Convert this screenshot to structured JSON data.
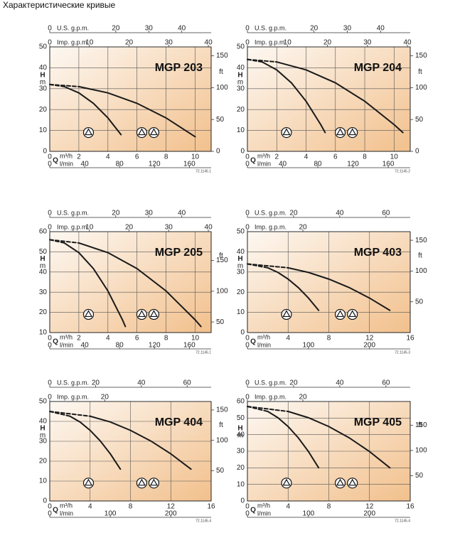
{
  "title": "Характеристические кривые",
  "chart_data": [
    {
      "type": "line",
      "title": "MGP 203",
      "code": "72.1145.1",
      "xlabel": "Q",
      "xunit": "m³/h",
      "ylabel": "H",
      "yunit": "m",
      "y2label": "ft",
      "xlim": [
        0,
        11.1
      ],
      "xticks": [
        0,
        2,
        4,
        6,
        8,
        10
      ],
      "x_axes": [
        {
          "label": "U.S. g.p.m.",
          "position": "top",
          "lim": [
            0,
            48.9
          ],
          "ticks": [
            0,
            20,
            30,
            40
          ]
        },
        {
          "label": "Imp. g.p.m.",
          "position": "top",
          "lim": [
            0,
            40.7
          ],
          "ticks": [
            0,
            10,
            20,
            30,
            40
          ]
        },
        {
          "label": "l/min",
          "position": "bottom",
          "lim": [
            0,
            185
          ],
          "ticks": [
            0,
            40,
            80,
            120,
            160
          ]
        }
      ],
      "ylim": [
        0,
        50
      ],
      "yticks": [
        0,
        10,
        20,
        30,
        40,
        50
      ],
      "y2lim": [
        0,
        164
      ],
      "y2ticks": [
        0,
        50,
        100,
        150
      ],
      "grid": true,
      "color": "#1a1a1a",
      "series": [
        {
          "style": "dashed",
          "x": [
            0,
            1
          ],
          "values": [
            32,
            31
          ]
        },
        {
          "style": "solid",
          "x": [
            1,
            2,
            3,
            4,
            4.9
          ],
          "values": [
            31,
            28,
            23,
            16,
            8
          ]
        },
        {
          "style": "dashed",
          "x": [
            0,
            2
          ],
          "values": [
            32,
            31
          ]
        },
        {
          "style": "solid",
          "x": [
            2,
            4,
            6,
            8,
            10
          ],
          "values": [
            31,
            28,
            23,
            16,
            7
          ]
        }
      ]
    },
    {
      "type": "line",
      "title": "MGP 204",
      "code": "72.1145.2",
      "xlabel": "Q",
      "xunit": "m³/h",
      "ylabel": "H",
      "yunit": "m",
      "y2label": "ft",
      "xlim": [
        0,
        11.1
      ],
      "xticks": [
        0,
        2,
        4,
        6,
        8,
        10
      ],
      "x_axes": [
        {
          "label": "U.S. g.p.m.",
          "position": "top",
          "lim": [
            0,
            48.9
          ],
          "ticks": [
            0,
            20,
            30,
            40
          ]
        },
        {
          "label": "Imp. g.p.m.",
          "position": "top",
          "lim": [
            0,
            40.7
          ],
          "ticks": [
            0,
            10,
            20,
            30,
            40
          ]
        },
        {
          "label": "l/min",
          "position": "bottom",
          "lim": [
            0,
            185
          ],
          "ticks": [
            0,
            40,
            80,
            120,
            160
          ]
        }
      ],
      "ylim": [
        0,
        50
      ],
      "yticks": [
        0,
        10,
        20,
        30,
        40,
        50
      ],
      "y2lim": [
        0,
        164
      ],
      "y2ticks": [
        0,
        50,
        100,
        150
      ],
      "grid": true,
      "color": "#1a1a1a",
      "series": [
        {
          "style": "dashed",
          "x": [
            0,
            1
          ],
          "values": [
            44,
            42.8
          ]
        },
        {
          "style": "solid",
          "x": [
            1,
            2,
            3,
            4,
            5,
            5.3
          ],
          "values": [
            42.8,
            39,
            32.8,
            24,
            12.8,
            9
          ]
        },
        {
          "style": "dashed",
          "x": [
            0,
            2
          ],
          "values": [
            44,
            42.8
          ]
        },
        {
          "style": "solid",
          "x": [
            2,
            4,
            6,
            8,
            10,
            10.6
          ],
          "values": [
            42.8,
            39,
            32.8,
            24,
            12.8,
            9
          ]
        }
      ]
    },
    {
      "type": "line",
      "title": "MGP 205",
      "code": "72.1145.1",
      "xlabel": "Q",
      "xunit": "m³/h",
      "ylabel": "H",
      "yunit": "m",
      "y2label": "ft",
      "xlim": [
        0,
        11.1
      ],
      "xticks": [
        0,
        2,
        4,
        6,
        8,
        10
      ],
      "x_axes": [
        {
          "label": "U.S. g.p.m.",
          "position": "top",
          "lim": [
            0,
            48.9
          ],
          "ticks": [
            0,
            20,
            30,
            40
          ]
        },
        {
          "label": "Imp. g.p.m.",
          "position": "top",
          "lim": [
            0,
            40.7
          ],
          "ticks": [
            0,
            10,
            20,
            30,
            40
          ]
        },
        {
          "label": "l/min",
          "position": "bottom",
          "lim": [
            0,
            185
          ],
          "ticks": [
            0,
            40,
            80,
            120,
            160
          ]
        }
      ],
      "ylim": [
        10,
        60
      ],
      "yticks": [
        10,
        20,
        30,
        40,
        50,
        60
      ],
      "y2lim": [
        32.8,
        196.9
      ],
      "y2ticks": [
        50,
        100,
        150
      ],
      "grid": true,
      "color": "#1a1a1a",
      "series": [
        {
          "style": "dashed",
          "x": [
            0,
            1
          ],
          "values": [
            56,
            54.4
          ]
        },
        {
          "style": "solid",
          "x": [
            1,
            2,
            3,
            4,
            5,
            5.2
          ],
          "values": [
            54.4,
            49.6,
            41.7,
            30.6,
            16.3,
            13
          ]
        },
        {
          "style": "dashed",
          "x": [
            0,
            2
          ],
          "values": [
            56,
            54.4
          ]
        },
        {
          "style": "solid",
          "x": [
            2,
            4,
            6,
            8,
            10,
            10.4
          ],
          "values": [
            54.4,
            49.6,
            41.7,
            30.6,
            16.3,
            13
          ]
        }
      ]
    },
    {
      "type": "line",
      "title": "MGP 403",
      "code": "72.1145.3",
      "xlabel": "Q",
      "xunit": "m³/h",
      "ylabel": "H",
      "yunit": "m",
      "y2label": "ft",
      "xlim": [
        0,
        16
      ],
      "xticks": [
        0,
        4,
        8,
        12,
        16
      ],
      "x_axes": [
        {
          "label": "U.S. g.p.m.",
          "position": "top",
          "lim": [
            0,
            70.5
          ],
          "ticks": [
            0,
            20,
            40,
            60
          ]
        },
        {
          "label": "Imp. g.p.m.",
          "position": "top",
          "lim": [
            0,
            58.7
          ],
          "ticks": [
            0,
            20
          ]
        },
        {
          "label": "l/min",
          "position": "bottom",
          "lim": [
            0,
            266.7
          ],
          "ticks": [
            0,
            100,
            200
          ]
        }
      ],
      "ylim": [
        0,
        50
      ],
      "yticks": [
        0,
        10,
        20,
        30,
        40,
        50
      ],
      "y2lim": [
        0,
        164
      ],
      "y2ticks": [
        50,
        100,
        150
      ],
      "grid": true,
      "color": "#1a1a1a",
      "series": [
        {
          "style": "dashed",
          "x": [
            0,
            2
          ],
          "values": [
            34,
            32.1
          ]
        },
        {
          "style": "solid",
          "x": [
            2,
            3,
            4,
            5,
            6,
            7
          ],
          "values": [
            32.1,
            29.8,
            26.5,
            22.3,
            17.1,
            11
          ]
        },
        {
          "style": "dashed",
          "x": [
            0,
            4
          ],
          "values": [
            34,
            32.1
          ]
        },
        {
          "style": "solid",
          "x": [
            4,
            6,
            8,
            10,
            12,
            14
          ],
          "values": [
            32.1,
            29.8,
            26.5,
            22.3,
            17.1,
            11
          ]
        }
      ]
    },
    {
      "type": "line",
      "title": "MGP 404",
      "code": "72.1145.4",
      "xlabel": "Q",
      "xunit": "m³/h",
      "ylabel": "H",
      "yunit": "m",
      "y2label": "ft",
      "xlim": [
        0,
        16
      ],
      "xticks": [
        0,
        4,
        8,
        12,
        16
      ],
      "x_axes": [
        {
          "label": "U.S. g.p.m.",
          "position": "top",
          "lim": [
            0,
            70.5
          ],
          "ticks": [
            0,
            20,
            40,
            60
          ]
        },
        {
          "label": "Imp. g.p.m.",
          "position": "top",
          "lim": [
            0,
            58.7
          ],
          "ticks": [
            0,
            20
          ]
        },
        {
          "label": "l/min",
          "position": "bottom",
          "lim": [
            0,
            266.7
          ],
          "ticks": [
            0,
            100,
            200
          ]
        }
      ],
      "ylim": [
        0,
        50
      ],
      "yticks": [
        0,
        10,
        20,
        30,
        40,
        50
      ],
      "y2lim": [
        0,
        164
      ],
      "y2ticks": [
        50,
        100,
        150
      ],
      "grid": true,
      "color": "#1a1a1a",
      "series": [
        {
          "style": "dashed",
          "x": [
            0,
            2
          ],
          "values": [
            45,
            42.6
          ]
        },
        {
          "style": "solid",
          "x": [
            2,
            3,
            4,
            5,
            6,
            7
          ],
          "values": [
            42.6,
            39.7,
            35.5,
            30.2,
            23.7,
            16
          ]
        },
        {
          "style": "dashed",
          "x": [
            0,
            4
          ],
          "values": [
            45,
            42.6
          ]
        },
        {
          "style": "solid",
          "x": [
            4,
            6,
            8,
            10,
            12,
            14
          ],
          "values": [
            42.6,
            39.7,
            35.5,
            30.2,
            23.7,
            16
          ]
        }
      ]
    },
    {
      "type": "line",
      "title": "MGP 405",
      "code": "72.1145.4",
      "xlabel": "Q",
      "xunit": "m³/h",
      "ylabel": "H",
      "yunit": "m",
      "y2label": "ft",
      "xlim": [
        0,
        16
      ],
      "xticks": [
        0,
        4,
        8,
        12,
        16
      ],
      "x_axes": [
        {
          "label": "U.S. g.p.m.",
          "position": "top",
          "lim": [
            0,
            70.5
          ],
          "ticks": [
            0,
            20,
            40,
            60
          ]
        },
        {
          "label": "Imp. g.p.m.",
          "position": "top",
          "lim": [
            0,
            58.7
          ],
          "ticks": [
            0,
            20
          ]
        },
        {
          "label": "l/min",
          "position": "bottom",
          "lim": [
            0,
            266.7
          ],
          "ticks": [
            0,
            100,
            200
          ]
        }
      ],
      "ylim": [
        0,
        60
      ],
      "yticks": [
        0,
        10,
        20,
        30,
        40,
        50,
        60
      ],
      "y2lim": [
        0,
        196.9
      ],
      "y2ticks": [
        50,
        100,
        150
      ],
      "grid": true,
      "color": "#1a1a1a",
      "series": [
        {
          "style": "dashed",
          "x": [
            0,
            2
          ],
          "values": [
            57,
            54
          ]
        },
        {
          "style": "solid",
          "x": [
            2,
            3,
            4,
            5,
            6,
            7
          ],
          "values": [
            54,
            50.2,
            44.9,
            38.1,
            29.8,
            20
          ]
        },
        {
          "style": "dashed",
          "x": [
            0,
            4
          ],
          "values": [
            57,
            54
          ]
        },
        {
          "style": "solid",
          "x": [
            4,
            6,
            8,
            10,
            12,
            14
          ],
          "values": [
            54,
            50.2,
            44.9,
            38.1,
            29.8,
            20
          ]
        }
      ]
    }
  ]
}
